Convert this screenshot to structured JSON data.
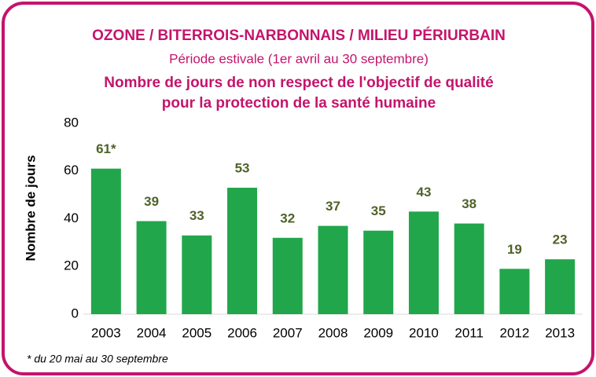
{
  "chart_data": {
    "type": "bar",
    "title": "OZONE / BITERROIS-NARBONNAIS / MILIEU PÉRIURBAIN",
    "subtitle": "Période estivale (1er avril au 30 septembre)",
    "title2": [
      "Nombre de jours de non respect de l'objectif de qualité",
      "pour la protection de la santé humaine"
    ],
    "ylabel": "Nombre de jours",
    "footnote": "* du 20 mai au 30 septembre",
    "categories": [
      "2003",
      "2004",
      "2005",
      "2006",
      "2007",
      "2008",
      "2009",
      "2010",
      "2011",
      "2012",
      "2013"
    ],
    "values": [
      61,
      39,
      33,
      53,
      32,
      37,
      35,
      43,
      38,
      19,
      23
    ],
    "value_labels": [
      "61*",
      "39",
      "33",
      "53",
      "32",
      "37",
      "35",
      "43",
      "38",
      "19",
      "23"
    ],
    "color": "#21a64b",
    "ylim": [
      0,
      80
    ],
    "yticks": [
      0,
      20,
      40,
      60,
      80
    ],
    "grid": false
  }
}
